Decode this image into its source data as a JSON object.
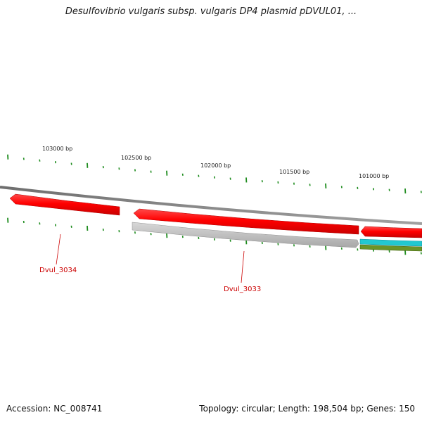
{
  "title": "Desulfovibrio vulgaris subsp. vulgaris DP4 plasmid pDVUL01, ...",
  "ruler": {
    "labels": [
      "103000 bp",
      "102500 bp",
      "102000 bp",
      "101500 bp",
      "101000 bp"
    ]
  },
  "genes": [
    {
      "name": "Dvul_3034",
      "strand": "forward",
      "color": "#ff0000",
      "labeled": true
    },
    {
      "name": "Dvul_3033",
      "strand": "forward",
      "color": "#ff0000",
      "labeled": true
    },
    {
      "name": "",
      "strand": "forward",
      "color": "#ff0000",
      "labeled": false
    },
    {
      "name": "",
      "strand": "reverse",
      "color": "#c4c4c4",
      "labeled": false
    }
  ],
  "feature_tracks": [
    {
      "color": "#22c8d0"
    },
    {
      "color": "#6b9428"
    }
  ],
  "colors": {
    "tick": "#1e8c1e",
    "backbone": "#8a8a8a",
    "gene_label": "#cc0000"
  },
  "footer": {
    "accession": "Accession: NC_008741",
    "summary": "Topology: circular; Length: 198,504 bp; Genes: 150"
  }
}
